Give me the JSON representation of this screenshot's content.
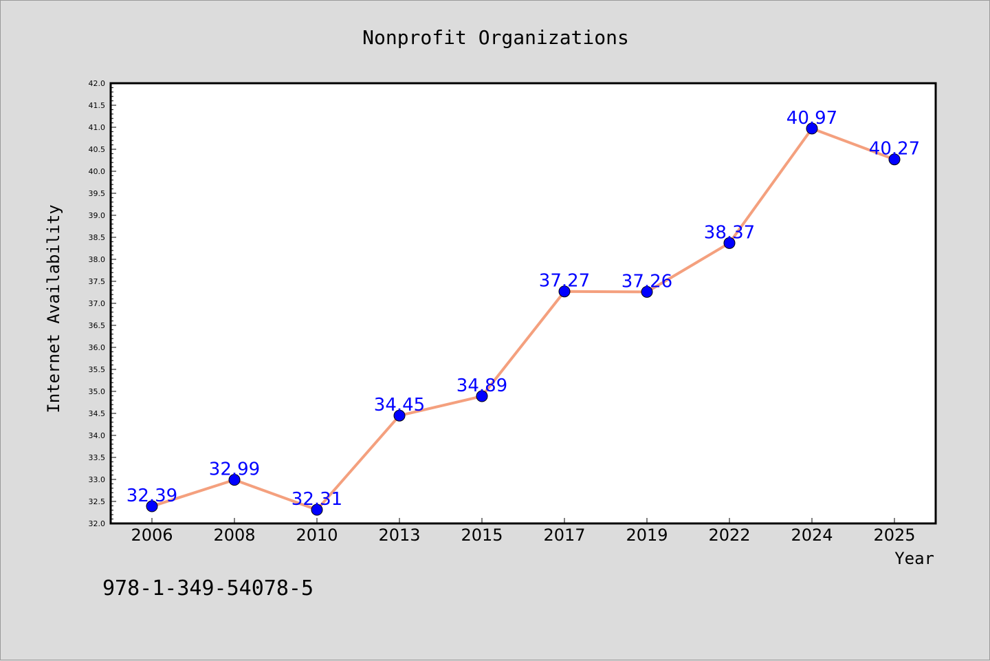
{
  "chart_data": {
    "type": "line",
    "title": "Nonprofit Organizations",
    "xlabel": "Year",
    "ylabel": "Internet Availability",
    "categories": [
      "2006",
      "2008",
      "2010",
      "2013",
      "2015",
      "2017",
      "2019",
      "2022",
      "2024",
      "2025"
    ],
    "series": [
      {
        "values": [
          32.39,
          32.99,
          32.31,
          34.45,
          34.89,
          37.27,
          37.26,
          38.37,
          40.97,
          40.27
        ]
      }
    ],
    "data_labels": [
      "32.39",
      "32.99",
      "32.31",
      "34.45",
      "34.89",
      "37.27",
      "37.26",
      "38.37",
      "40.97",
      "40.27"
    ],
    "ylim": [
      32.0,
      42.0
    ],
    "yticks": [
      "32.0",
      "32.5",
      "33.0",
      "33.5",
      "34.0",
      "34.5",
      "35.0",
      "35.5",
      "36.0",
      "36.5",
      "37.0",
      "37.5",
      "38.0",
      "38.5",
      "39.0",
      "39.5",
      "40.0",
      "40.5",
      "41.0",
      "41.5",
      "42.0"
    ],
    "grid": false,
    "line_color": "#f4a07e",
    "marker_color": "#0000ff",
    "label_color": "#0000ff"
  },
  "footer_text": "978-1-349-54078-5"
}
